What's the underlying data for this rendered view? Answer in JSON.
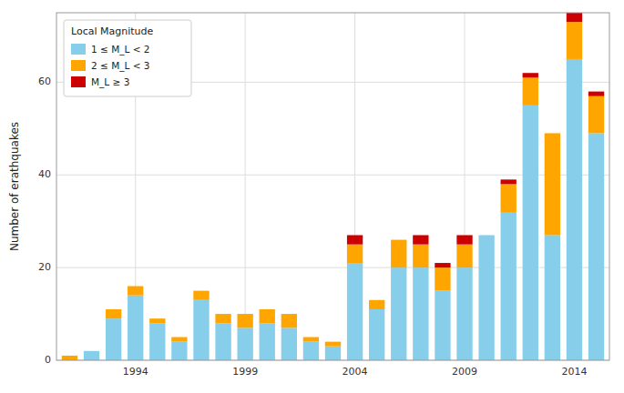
{
  "chart_data": {
    "type": "bar",
    "stacked": true,
    "x": [
      1991,
      1992,
      1993,
      1994,
      1995,
      1996,
      1997,
      1998,
      1999,
      2000,
      2001,
      2002,
      2003,
      2004,
      2005,
      2006,
      2007,
      2008,
      2009,
      2010,
      2011,
      2012,
      2013,
      2014,
      2015
    ],
    "series": [
      {
        "name": "1 ≤ M_L < 2",
        "color": "#87CEEB",
        "values": [
          0,
          2,
          9,
          14,
          8,
          4,
          13,
          8,
          7,
          8,
          7,
          4,
          3,
          21,
          11,
          20,
          20,
          15,
          20,
          27,
          32,
          55,
          27,
          65,
          49
        ]
      },
      {
        "name": "2 ≤ M_L < 3",
        "color": "#FFA500",
        "values": [
          1,
          0,
          2,
          2,
          1,
          1,
          2,
          2,
          3,
          3,
          3,
          1,
          1,
          4,
          2,
          6,
          5,
          5,
          5,
          0,
          6,
          6,
          22,
          8,
          8
        ]
      },
      {
        "name": "M_L ≥ 3",
        "color": "#CC0000",
        "values": [
          0,
          0,
          0,
          0,
          0,
          0,
          0,
          0,
          0,
          0,
          0,
          0,
          0,
          2,
          0,
          0,
          2,
          1,
          2,
          0,
          1,
          1,
          0,
          2,
          1
        ]
      }
    ],
    "ylabel": "Number of erathquakes",
    "legend_title": "Local Magnitude",
    "xlim": [
      1990.4,
      2015.6
    ],
    "xticks": [
      1994,
      1999,
      2004,
      2009,
      2014
    ],
    "ylim": [
      0,
      75
    ],
    "yticks": [
      0,
      20,
      40,
      60
    ],
    "grid": true,
    "legend": "upper left"
  }
}
